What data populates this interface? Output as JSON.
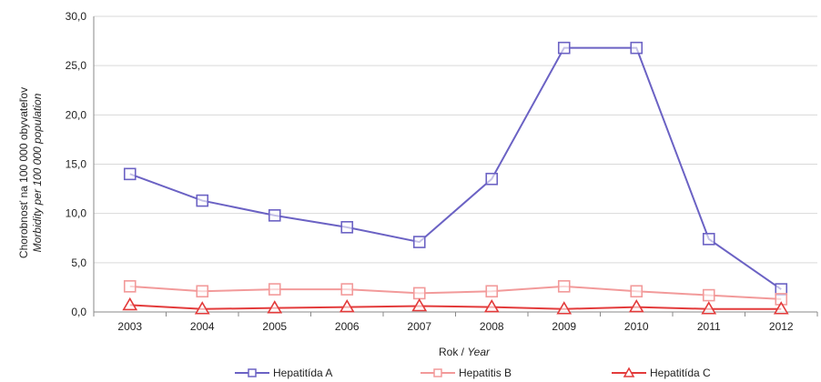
{
  "chart_data": {
    "type": "line",
    "categories": [
      "2003",
      "2004",
      "2005",
      "2006",
      "2007",
      "2008",
      "2009",
      "2010",
      "2011",
      "2012"
    ],
    "y_ticks": [
      "0,0",
      "5,0",
      "10,0",
      "15,0",
      "20,0",
      "25,0",
      "30,0"
    ],
    "ylim": [
      0,
      30
    ],
    "grid": "horizontal",
    "ylabel": "Chorobnosť na 100 000 obyvateľov",
    "ylabel_en": "Morbidity per 100 000 population",
    "xlabel": "Rok / ",
    "xlabel_en": "Year",
    "legend_position": "bottom",
    "series": [
      {
        "name": "Hepatitída A",
        "color": "#6b62c4",
        "marker": "square",
        "values": [
          14.0,
          11.3,
          9.8,
          8.6,
          7.1,
          13.5,
          26.8,
          26.8,
          7.4,
          2.3
        ]
      },
      {
        "name": "Hepatitis B",
        "color": "#f29a9a",
        "marker": "square",
        "values": [
          2.6,
          2.1,
          2.3,
          2.3,
          1.9,
          2.1,
          2.6,
          2.1,
          1.7,
          1.3
        ]
      },
      {
        "name": "Hepatitída C",
        "color": "#e33b3b",
        "marker": "triangle",
        "values": [
          0.7,
          0.3,
          0.4,
          0.5,
          0.6,
          0.5,
          0.3,
          0.5,
          0.3,
          0.3
        ]
      }
    ]
  }
}
